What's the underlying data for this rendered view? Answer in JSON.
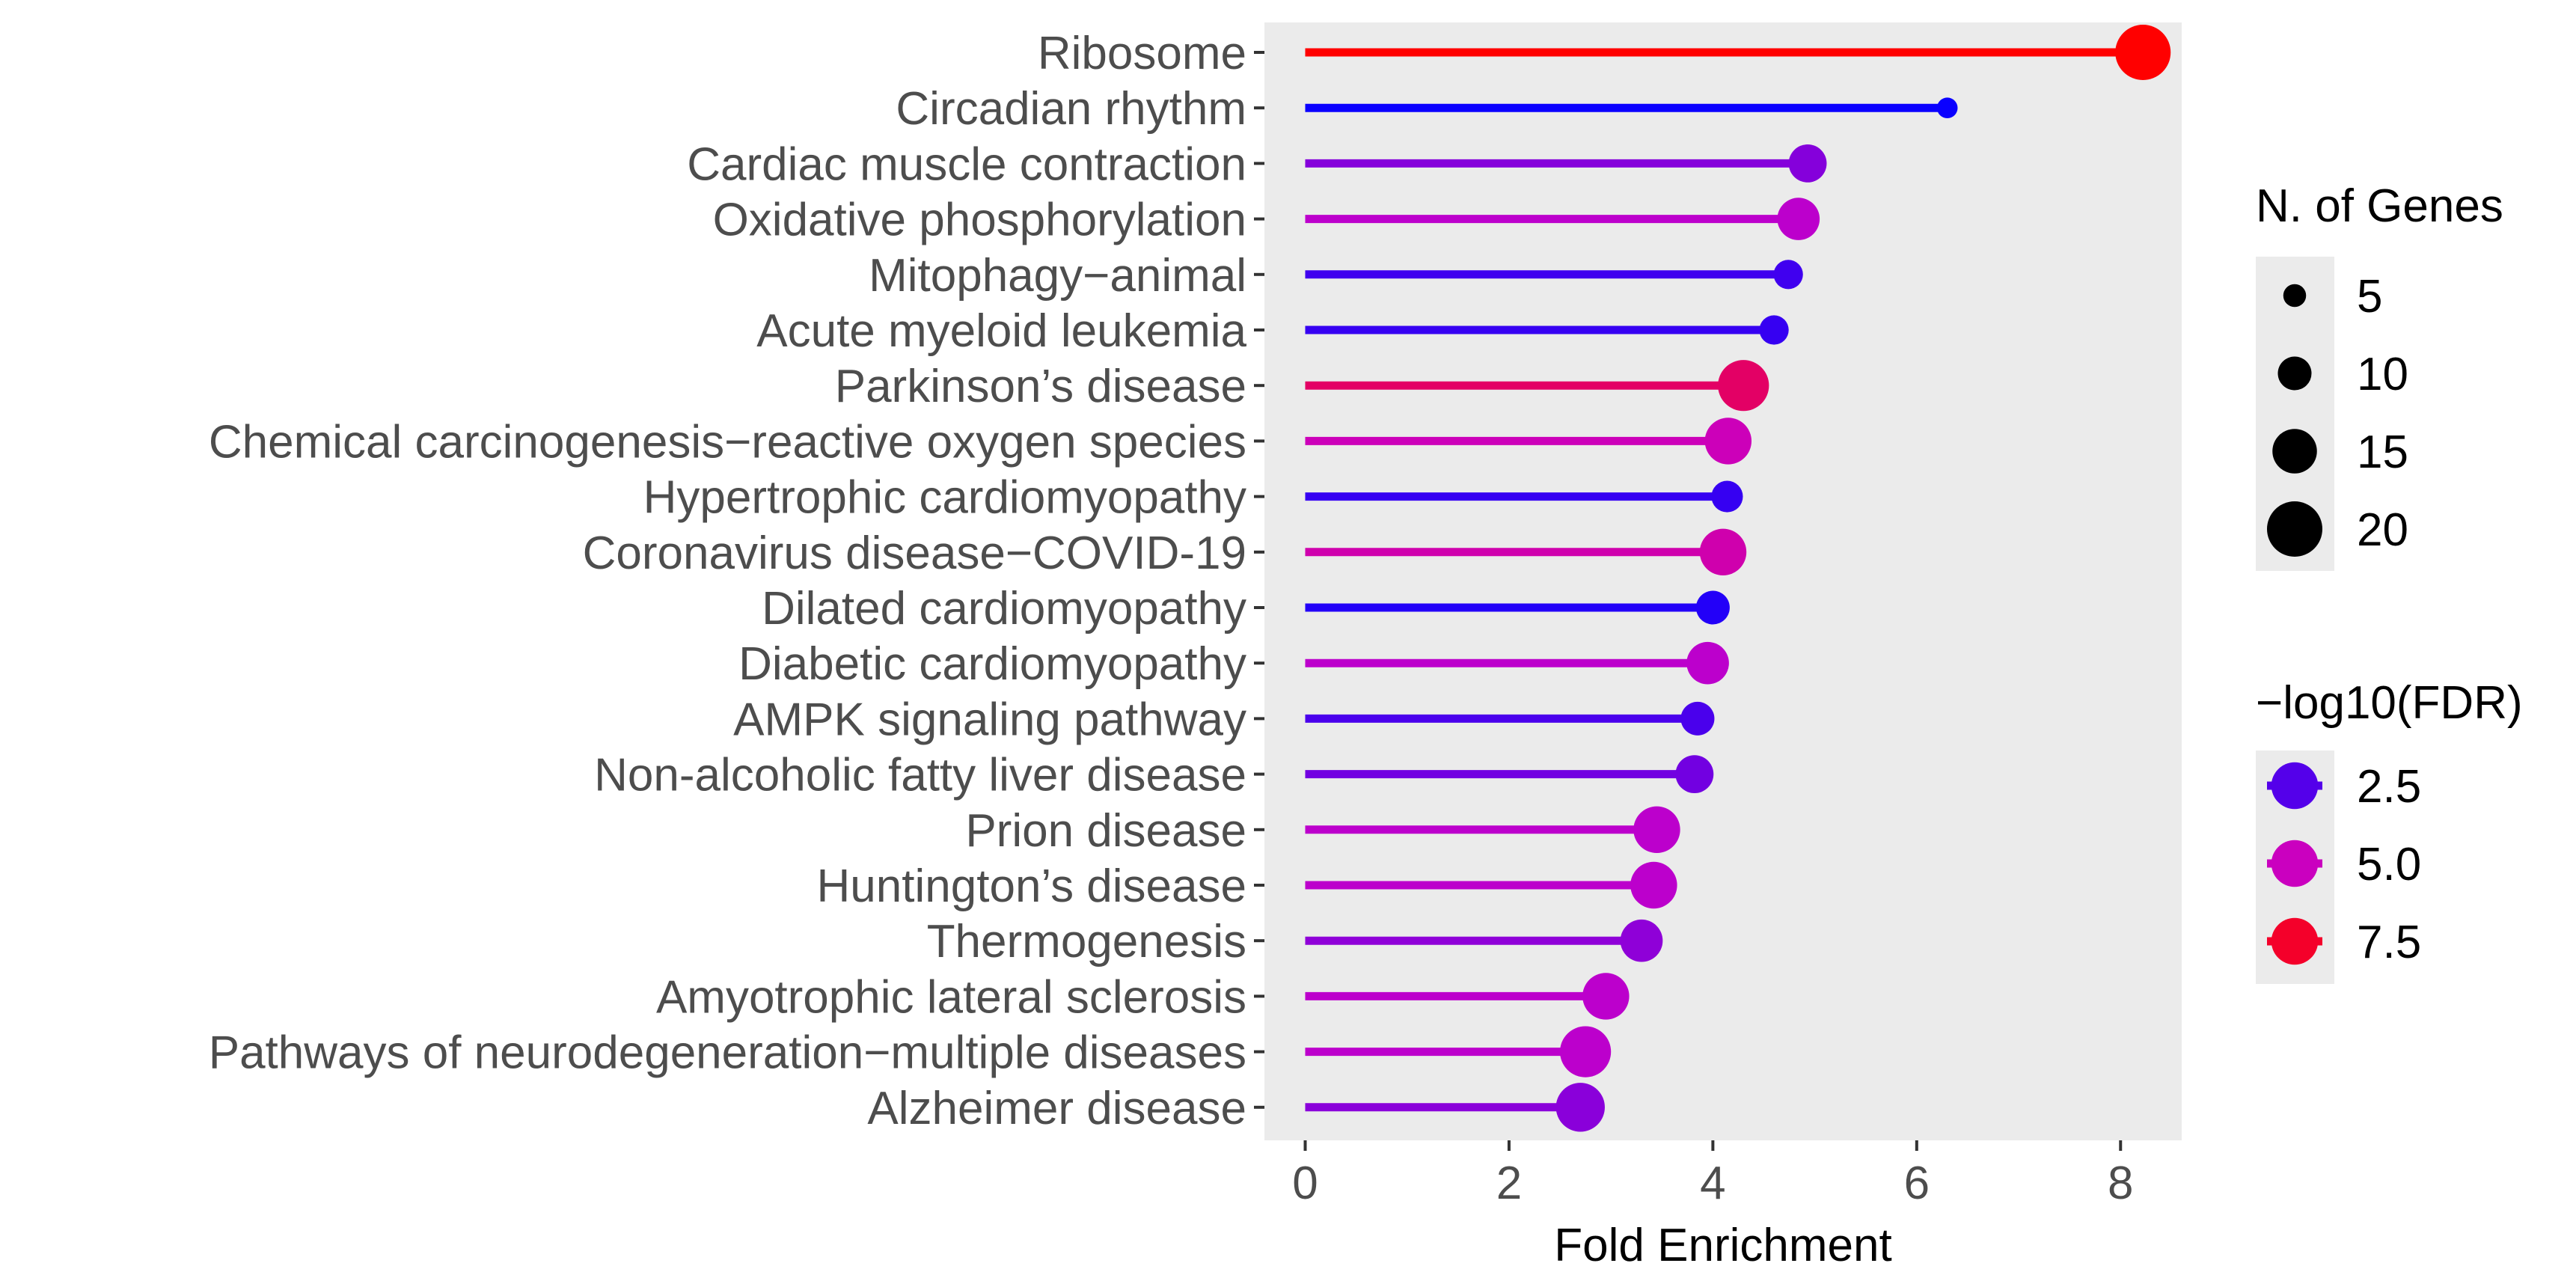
{
  "chart_data": {
    "type": "lollipop",
    "xlabel": "Fold Enrichment",
    "ylabel": "",
    "xlim": [
      -0.4,
      8.6
    ],
    "xticks": [
      0,
      2,
      4,
      6,
      8
    ],
    "grid": false,
    "panel_background": "#ebebeb",
    "categories": [
      "Ribosome",
      "Circadian rhythm",
      "Cardiac muscle contraction",
      "Oxidative phosphorylation",
      "Mitophagy−animal",
      "Acute myeloid leukemia",
      "Parkinson’s  disease",
      "Chemical carcinogenesis−reactive oxygen species",
      "Hypertrophic cardiomyopathy",
      "Coronavirus disease−COVID‑19",
      "Dilated cardiomyopathy",
      "Diabetic cardiomyopathy",
      "AMPK signaling pathway",
      "Non‑alcoholic fatty liver disease",
      "Prion disease",
      "Huntington’s disease",
      "Thermogenesis",
      "Amyotrophic lateral sclerosis",
      "Pathways of neurodegeneration−multiple diseases",
      "Alzheimer disease"
    ],
    "fold_enrichment": [
      8.22,
      6.3,
      4.93,
      4.84,
      4.74,
      4.6,
      4.3,
      4.15,
      4.14,
      4.1,
      4.0,
      3.95,
      3.85,
      3.82,
      3.45,
      3.42,
      3.3,
      2.95,
      2.75,
      2.7
    ],
    "n_genes": [
      20,
      4,
      12,
      14,
      8,
      8,
      18,
      16,
      9,
      16,
      10,
      14,
      10,
      12,
      16,
      16,
      14,
      16,
      18,
      17
    ],
    "neg_log10_fdr": [
      8.2,
      1.0,
      3.5,
      4.6,
      2.1,
      1.9,
      6.5,
      5.1,
      1.9,
      5.3,
      1.5,
      4.6,
      2.3,
      3.1,
      4.6,
      4.6,
      3.7,
      4.6,
      4.6,
      3.6
    ],
    "color_scale": {
      "low_value": 1.0,
      "low": "#0a00ff",
      "mid_value": 4.85,
      "mid": "#c800c8",
      "high_value": 8.2,
      "high": "#ff0000"
    },
    "legend_size": {
      "title": "N. of Genes",
      "labels": [
        "5",
        "10",
        "15",
        "20"
      ],
      "values": [
        5,
        10,
        15,
        20
      ]
    },
    "legend_color": {
      "title": "−log10(FDR)",
      "labels": [
        "2.5",
        "5.0",
        "7.5"
      ],
      "values": [
        2.5,
        5.0,
        7.5
      ]
    },
    "legend_placement": "right"
  }
}
